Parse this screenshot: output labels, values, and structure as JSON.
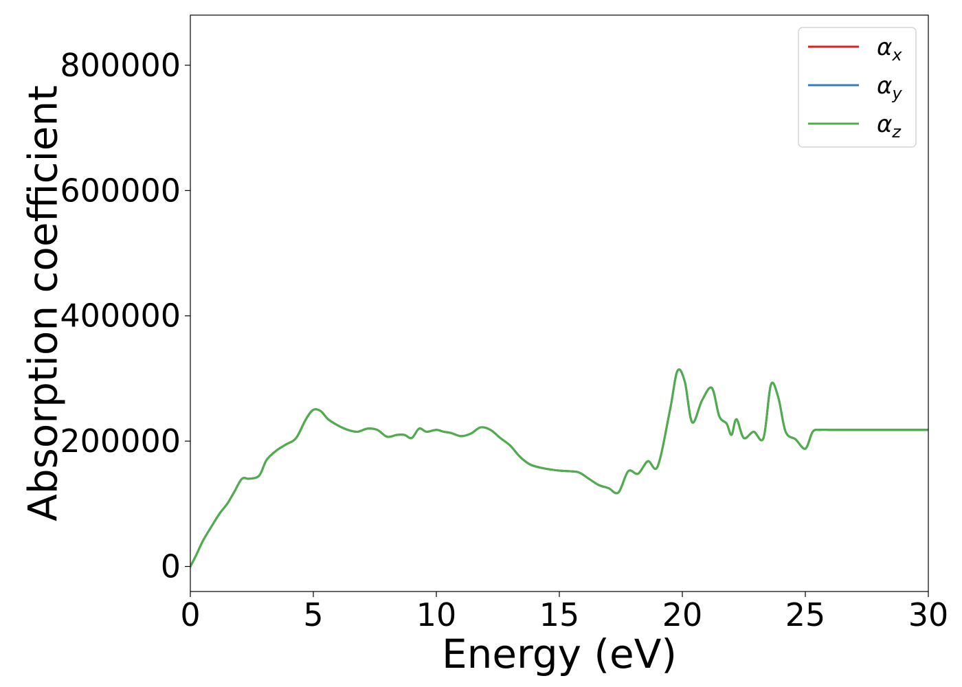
{
  "chart_data": {
    "type": "line",
    "title": "",
    "xlabel": "Energy (eV)",
    "ylabel": "Absorption coefficient",
    "xlim": [
      0,
      30
    ],
    "ylim": [
      -40000,
      880000
    ],
    "xticks": [
      0,
      5,
      10,
      15,
      20,
      25,
      30
    ],
    "xtick_labels": [
      "0",
      "5",
      "10",
      "15",
      "20",
      "25",
      "30"
    ],
    "yticks": [
      0,
      200000,
      400000,
      600000,
      800000
    ],
    "ytick_labels": [
      "0",
      "200000",
      "400000",
      "600000",
      "800000"
    ],
    "grid": false,
    "legend_position": "top-right",
    "series": [
      {
        "name": "α_x",
        "label_main": "α",
        "label_sub": "x",
        "color": "#e41a1c",
        "x": [
          0,
          0.2,
          0.5,
          0.8,
          1.2,
          1.5,
          1.8,
          2.1,
          2.4,
          2.8,
          3.1,
          3.5,
          3.9,
          4.3,
          4.7,
          5.0,
          5.3,
          5.6,
          6.0,
          6.4,
          6.8,
          7.2,
          7.6,
          8.0,
          8.4,
          8.7,
          9.0,
          9.3,
          9.6,
          10.0,
          10.3,
          10.6,
          11.0,
          11.4,
          11.8,
          12.2,
          12.6,
          13.0,
          13.4,
          13.8,
          14.2,
          14.6,
          15.0,
          15.4,
          15.8,
          16.2,
          16.6,
          17.0,
          17.4,
          17.8,
          18.2,
          18.6,
          19.0,
          19.5,
          19.8,
          20.1,
          20.4,
          20.8,
          21.2,
          21.5,
          21.8,
          22.0,
          22.2,
          22.5,
          22.9,
          23.3,
          23.6,
          23.9,
          24.2,
          24.6,
          25.0,
          25.3,
          25.6,
          26.0,
          26.3,
          26.6,
          27.0,
          27.3,
          27.6,
          27.8,
          28.1,
          28.4,
          28.8,
          29.2,
          29.6,
          30.0
        ],
        "y": [
          0,
          15000,
          40000,
          60000,
          85000,
          100000,
          120000,
          140000,
          140000,
          145000,
          170000,
          185000,
          195000,
          205000,
          235000,
          250000,
          248000,
          235000,
          225000,
          218000,
          215000,
          220000,
          218000,
          207000,
          210000,
          210000,
          205000,
          220000,
          215000,
          218000,
          215000,
          213000,
          208000,
          212000,
          222000,
          218000,
          205000,
          193000,
          175000,
          163000,
          158000,
          155000,
          153000,
          152000,
          150000,
          140000,
          130000,
          125000,
          118000,
          152000,
          148000,
          168000,
          160000,
          250000,
          312000,
          295000,
          230000,
          265000,
          285000,
          240000,
          228000,
          210000,
          235000,
          205000,
          215000,
          205000,
          290000,
          270000,
          215000,
          203000,
          188000,
          215000,
          218000,
          218000,
          218000,
          218000,
          218000,
          218000,
          218000,
          218000,
          218000,
          218000,
          218000,
          218000,
          218000,
          218000
        ]
      },
      {
        "name": "α_y",
        "label_main": "α",
        "label_sub": "y",
        "color": "#377eb8",
        "x": [
          0,
          0.2,
          0.5,
          0.8,
          1.2,
          1.5,
          1.8,
          2.1,
          2.4,
          2.8,
          3.1,
          3.5,
          3.9,
          4.3,
          4.7,
          5.0,
          5.3,
          5.6,
          6.0,
          6.4,
          6.8,
          7.2,
          7.6,
          8.0,
          8.4,
          8.7,
          9.0,
          9.3,
          9.6,
          10.0,
          10.3,
          10.6,
          11.0,
          11.4,
          11.8,
          12.2,
          12.6,
          13.0,
          13.4,
          13.8,
          14.2,
          14.6,
          15.0,
          15.4,
          15.8,
          16.2,
          16.6,
          17.0,
          17.4,
          17.8,
          18.2,
          18.6,
          19.0,
          19.5,
          19.8,
          20.1,
          20.4,
          20.8,
          21.2,
          21.5,
          21.8,
          22.0,
          22.2,
          22.5,
          22.9,
          23.3,
          23.6,
          23.9,
          24.2,
          24.6,
          25.0,
          25.3,
          25.6,
          26.0,
          26.3,
          26.6,
          27.0,
          27.3,
          27.6,
          27.8,
          28.1,
          28.4,
          28.8,
          29.2,
          29.6,
          30.0
        ],
        "y": [
          0,
          15000,
          40000,
          60000,
          85000,
          100000,
          120000,
          140000,
          140000,
          145000,
          170000,
          185000,
          195000,
          205000,
          235000,
          250000,
          248000,
          235000,
          225000,
          218000,
          215000,
          220000,
          218000,
          207000,
          210000,
          210000,
          205000,
          220000,
          215000,
          218000,
          215000,
          213000,
          208000,
          212000,
          222000,
          218000,
          205000,
          193000,
          175000,
          163000,
          158000,
          155000,
          153000,
          152000,
          150000,
          140000,
          130000,
          125000,
          118000,
          152000,
          148000,
          168000,
          160000,
          250000,
          312000,
          295000,
          230000,
          265000,
          285000,
          240000,
          228000,
          210000,
          235000,
          205000,
          215000,
          205000,
          290000,
          270000,
          215000,
          203000,
          188000,
          215000,
          218000,
          218000,
          218000,
          218000,
          218000,
          218000,
          218000,
          218000,
          218000,
          218000,
          218000,
          218000,
          218000,
          218000
        ]
      },
      {
        "name": "α_z",
        "label_main": "α",
        "label_sub": "z",
        "color": "#4daf4a",
        "x": [
          0,
          0.2,
          0.5,
          0.8,
          1.2,
          1.5,
          1.8,
          2.1,
          2.4,
          2.8,
          3.1,
          3.5,
          3.9,
          4.3,
          4.7,
          5.0,
          5.3,
          5.6,
          6.0,
          6.4,
          6.8,
          7.2,
          7.6,
          8.0,
          8.4,
          8.7,
          9.0,
          9.3,
          9.6,
          10.0,
          10.3,
          10.6,
          11.0,
          11.4,
          11.8,
          12.2,
          12.6,
          13.0,
          13.4,
          13.8,
          14.2,
          14.6,
          15.0,
          15.4,
          15.8,
          16.2,
          16.6,
          17.0,
          17.4,
          17.8,
          18.2,
          18.6,
          19.0,
          19.5,
          19.8,
          20.1,
          20.4,
          20.8,
          21.2,
          21.5,
          21.8,
          22.0,
          22.2,
          22.5,
          22.9,
          23.3,
          23.6,
          23.9,
          24.2,
          24.6,
          25.0,
          25.3,
          25.6,
          26.0,
          26.3,
          26.6,
          27.0,
          27.3,
          27.6,
          27.8,
          28.1,
          28.4,
          28.8,
          29.2,
          29.6,
          30.0
        ],
        "y": [
          0,
          15000,
          40000,
          60000,
          85000,
          100000,
          120000,
          140000,
          140000,
          145000,
          170000,
          185000,
          195000,
          205000,
          235000,
          250000,
          248000,
          235000,
          225000,
          218000,
          215000,
          220000,
          218000,
          207000,
          210000,
          210000,
          205000,
          220000,
          215000,
          218000,
          215000,
          213000,
          208000,
          212000,
          222000,
          218000,
          205000,
          193000,
          175000,
          163000,
          158000,
          155000,
          153000,
          152000,
          150000,
          140000,
          130000,
          125000,
          118000,
          152000,
          148000,
          168000,
          160000,
          250000,
          312000,
          295000,
          230000,
          265000,
          285000,
          240000,
          228000,
          210000,
          235000,
          205000,
          215000,
          205000,
          290000,
          270000,
          215000,
          203000,
          188000,
          215000,
          218000,
          218000,
          218000,
          218000,
          218000,
          218000,
          218000,
          218000,
          218000,
          218000,
          218000,
          218000,
          218000,
          218000
        ]
      }
    ]
  }
}
